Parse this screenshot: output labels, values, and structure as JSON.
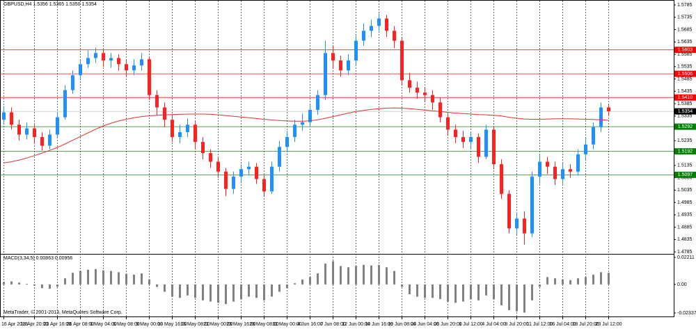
{
  "chart_data": [
    {
      "type": "candlestick",
      "title": "GBPUSD,H4  1.5356 1.5365 1.5350 1.5354",
      "up_color": "#1e90ff",
      "down_color": "#ff2020",
      "open": [
        1.532,
        1.535,
        1.53,
        1.526,
        1.5285,
        1.525,
        1.5215,
        1.526,
        1.533,
        1.544,
        1.55,
        1.5545,
        1.557,
        1.559,
        1.556,
        1.557,
        1.5545,
        1.552,
        1.554,
        1.5565,
        1.542,
        1.537,
        1.532,
        1.525,
        1.527,
        1.53,
        1.523,
        1.5185,
        1.515,
        1.511,
        1.504,
        1.509,
        1.512,
        1.513,
        1.508,
        1.503,
        1.513,
        1.521,
        1.525,
        1.53,
        1.531,
        1.536,
        1.542,
        1.559,
        1.556,
        1.552,
        1.556,
        1.564,
        1.568,
        1.57,
        1.573,
        1.568,
        1.564,
        1.548,
        1.545,
        1.543,
        1.542,
        1.539,
        1.533,
        1.528,
        1.525,
        1.523,
        1.525,
        1.517,
        1.528,
        1.514,
        1.502,
        1.488,
        1.492,
        1.486,
        1.509,
        1.515,
        1.513,
        1.508,
        1.512,
        1.511,
        1.518,
        1.522,
        1.529,
        1.537
      ],
      "high": [
        1.5372,
        1.537,
        1.532,
        1.531,
        1.53,
        1.527,
        1.528,
        1.535,
        1.546,
        1.552,
        1.5565,
        1.56,
        1.5612,
        1.5605,
        1.559,
        1.5585,
        1.556,
        1.5565,
        1.559,
        1.5575,
        1.544,
        1.539,
        1.5335,
        1.53,
        1.5325,
        1.5315,
        1.525,
        1.52,
        1.517,
        1.5125,
        1.511,
        1.514,
        1.515,
        1.5145,
        1.5095,
        1.515,
        1.5235,
        1.5275,
        1.532,
        1.5345,
        1.538,
        1.544,
        1.564,
        1.562,
        1.558,
        1.5585,
        1.566,
        1.571,
        1.5725,
        1.575,
        1.5745,
        1.57,
        1.5655,
        1.551,
        1.5475,
        1.545,
        1.544,
        1.541,
        1.5345,
        1.53,
        1.5275,
        1.527,
        1.5265,
        1.53,
        1.5295,
        1.516,
        1.5035,
        1.4945,
        1.495,
        1.511,
        1.518,
        1.517,
        1.515,
        1.5145,
        1.514,
        1.52,
        1.5245,
        1.531,
        1.539,
        1.538
      ],
      "low": [
        1.53,
        1.528,
        1.5235,
        1.524,
        1.5225,
        1.5195,
        1.52,
        1.5245,
        1.532,
        1.5425,
        1.548,
        1.553,
        1.555,
        1.5535,
        1.553,
        1.552,
        1.5495,
        1.55,
        1.552,
        1.54,
        1.534,
        1.529,
        1.523,
        1.5225,
        1.525,
        1.5205,
        1.516,
        1.5125,
        1.5085,
        1.501,
        1.502,
        1.507,
        1.5095,
        1.506,
        1.501,
        1.502,
        1.511,
        1.519,
        1.523,
        1.5275,
        1.529,
        1.534,
        1.54,
        1.553,
        1.5495,
        1.55,
        1.554,
        1.562,
        1.5655,
        1.568,
        1.5655,
        1.561,
        1.546,
        1.543,
        1.5405,
        1.5395,
        1.536,
        1.531,
        1.5255,
        1.5225,
        1.5205,
        1.52,
        1.5145,
        1.516,
        1.512,
        1.5,
        1.486,
        1.4855,
        1.4815,
        1.4845,
        1.506,
        1.51,
        1.5055,
        1.506,
        1.5085,
        1.5095,
        1.516,
        1.52,
        1.527,
        1.5335
      ],
      "close": [
        1.535,
        1.53,
        1.526,
        1.5285,
        1.525,
        1.5215,
        1.526,
        1.533,
        1.544,
        1.55,
        1.5545,
        1.557,
        1.559,
        1.556,
        1.557,
        1.5545,
        1.552,
        1.554,
        1.5565,
        1.542,
        1.537,
        1.532,
        1.525,
        1.527,
        1.53,
        1.523,
        1.5185,
        1.515,
        1.511,
        1.504,
        1.509,
        1.512,
        1.513,
        1.508,
        1.503,
        1.513,
        1.521,
        1.525,
        1.53,
        1.531,
        1.536,
        1.542,
        1.559,
        1.556,
        1.552,
        1.556,
        1.564,
        1.568,
        1.57,
        1.573,
        1.568,
        1.564,
        1.548,
        1.545,
        1.543,
        1.542,
        1.539,
        1.533,
        1.528,
        1.525,
        1.523,
        1.525,
        1.517,
        1.528,
        1.514,
        1.502,
        1.488,
        1.492,
        1.486,
        1.509,
        1.515,
        1.513,
        1.508,
        1.512,
        1.511,
        1.518,
        1.522,
        1.529,
        1.537,
        1.5354
      ],
      "ma": {
        "color": "#e03030",
        "values": [
          1.5145,
          1.515,
          1.5157,
          1.5165,
          1.5175,
          1.5185,
          1.5196,
          1.5208,
          1.5222,
          1.5237,
          1.5252,
          1.5267,
          1.5282,
          1.5295,
          1.5306,
          1.5315,
          1.5322,
          1.5328,
          1.5333,
          1.5336,
          1.5338,
          1.534,
          1.5341,
          1.5342,
          1.5343,
          1.5343,
          1.5343,
          1.5342,
          1.534,
          1.5337,
          1.5334,
          1.5331,
          1.5328,
          1.5325,
          1.5322,
          1.5319,
          1.5317,
          1.5315,
          1.5314,
          1.5314,
          1.5316,
          1.532,
          1.5326,
          1.5333,
          1.534,
          1.5347,
          1.5353,
          1.5358,
          1.5362,
          1.5365,
          1.5367,
          1.5368,
          1.5367,
          1.5365,
          1.5362,
          1.5359,
          1.5356,
          1.5353,
          1.535,
          1.5347,
          1.5345,
          1.5343,
          1.5341,
          1.534,
          1.5338,
          1.5335,
          1.533,
          1.5326,
          1.5323,
          1.5322,
          1.5322,
          1.5323,
          1.5324,
          1.5324,
          1.5324,
          1.5323,
          1.5322,
          1.5321,
          1.532,
          1.5318
        ]
      },
      "levels": [
        {
          "value": 1.5603,
          "color": "#ff0000"
        },
        {
          "value": 1.5506,
          "color": "#ff0000"
        },
        {
          "value": {
            "value": 1.541,
            "label": "1.5410"
          },
          "color": "#ff0000"
        },
        {
          "value": 1.5354,
          "color": "#000000"
        },
        {
          "value": 1.5292,
          "color": "#008000"
        },
        {
          "value": 1.5192,
          "color": "#008000"
        },
        {
          "value": 1.5097,
          "color": "#008000"
        }
      ],
      "xlim": [
        -0.5,
        87.5
      ],
      "ylim": [
        1.4777,
        1.5802
      ],
      "yticks": [
        1.4785,
        1.4835,
        1.4885,
        1.4935,
        1.4985,
        1.5035,
        1.5085,
        1.5135,
        1.5185,
        1.5235,
        1.5285,
        1.5335,
        1.5385,
        1.5435,
        1.5485,
        1.5535,
        1.5585,
        1.5635,
        1.5685,
        1.5735,
        1.5785
      ],
      "xticks": [
        {
          "value": 0,
          "label": "16 Apr 2013"
        },
        {
          "value": 4,
          "label": "18 Apr 20:00"
        },
        {
          "value": 7,
          "label": "23 Apr 16:00"
        },
        {
          "value": 10,
          "label": "26 Apr 08:00"
        },
        {
          "value": 13,
          "label": "1 May 04:00"
        },
        {
          "value": 16,
          "label": "6 May 08:00"
        },
        {
          "value": 19,
          "label": "9 May 00:00"
        },
        {
          "value": 22,
          "label": "13 May 16:00"
        },
        {
          "value": 25,
          "label": "16 May 08:00"
        },
        {
          "value": 28,
          "label": "21 May 00:00"
        },
        {
          "value": 31,
          "label": "23 May 16:00"
        },
        {
          "value": 34,
          "label": "28 May 08:00"
        },
        {
          "value": 37,
          "label": "31 May 00:00"
        },
        {
          "value": 40,
          "label": "4 Jun 16:00"
        },
        {
          "value": 43,
          "label": "7 Jun 08:00"
        },
        {
          "value": 46,
          "label": "12 Jun 00:00"
        },
        {
          "value": 49,
          "label": "14 Jun 16:00"
        },
        {
          "value": 52,
          "label": "19 Jun 08:00"
        },
        {
          "value": 55,
          "label": "24 Jun 04:00"
        },
        {
          "value": 58,
          "label": "26 Jun 20:00"
        },
        {
          "value": 61,
          "label": "1 Jul 12:00"
        },
        {
          "value": 64,
          "label": "4 Jul 04:00"
        },
        {
          "value": 67,
          "label": "8 Jul 20:00"
        },
        {
          "value": 70,
          "label": "11 Jul 12:00"
        },
        {
          "value": 73,
          "label": "16 Jul 04:00"
        },
        {
          "value": 76,
          "label": "18 Jul 20:00"
        },
        {
          "value": 79,
          "label": "23 Jul 12:00"
        }
      ],
      "grid": true
    },
    {
      "type": "bar",
      "title": "MACD(3,34,5) 0.00863 0.00956",
      "color": "#808080",
      "values": [
        0.002,
        0.0025,
        0.0015,
        0.0005,
        -0.001,
        -0.003,
        -0.0035,
        -0.002,
        0.005,
        0.0095,
        0.011,
        0.012,
        0.0125,
        0.0115,
        0.011,
        0.01,
        0.0085,
        0.008,
        0.009,
        0.004,
        -0.002,
        -0.006,
        -0.01,
        -0.011,
        -0.009,
        -0.011,
        -0.013,
        -0.014,
        -0.015,
        -0.016,
        -0.014,
        -0.012,
        -0.01,
        -0.011,
        -0.013,
        -0.01,
        -0.006,
        -0.003,
        0.001,
        0.004,
        0.006,
        0.009,
        0.017,
        0.019,
        0.015,
        0.014,
        0.015,
        0.016,
        0.0155,
        0.016,
        0.014,
        0.011,
        -0.002,
        -0.008,
        -0.01,
        -0.011,
        -0.011,
        -0.012,
        -0.014,
        -0.015,
        -0.014,
        -0.012,
        -0.013,
        -0.009,
        -0.012,
        -0.017,
        -0.021,
        -0.022,
        -0.023,
        -0.013,
        -0.002,
        0.006,
        0.005,
        0.004,
        0.0035,
        0.005,
        0.006,
        0.008,
        0.01,
        0.0095
      ],
      "ylim": [
        -0.0262,
        0.0244
      ],
      "yticks": [
        0.02211,
        {
          "value": 0,
          "label": "0.00"
        },
        -0.02337
      ]
    }
  ],
  "footer": "MetaTrader, © 2001-2013, MetaQuotes Software Corp."
}
